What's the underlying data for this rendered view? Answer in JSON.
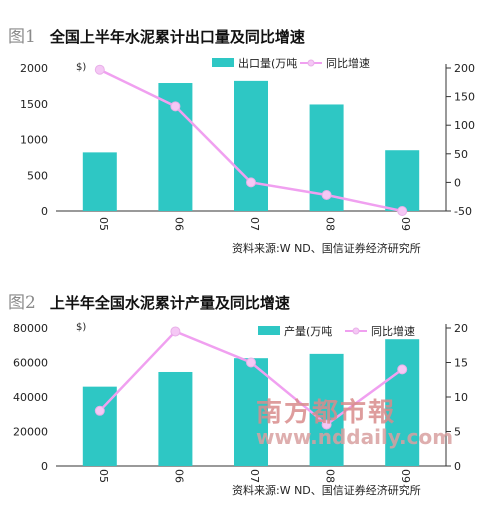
{
  "chart_data": [
    {
      "type": "bar",
      "fig_label": "图1",
      "title": "全国上半年水泥累计出口量及同比增速",
      "unit_left": "$)",
      "categories": [
        "05",
        "06",
        "07",
        "08",
        "09"
      ],
      "series": [
        {
          "name": "出口量(万吨",
          "kind": "bar",
          "axis": "left",
          "values": [
            820,
            1790,
            1820,
            1490,
            850
          ]
        },
        {
          "name": "同比增速",
          "kind": "line",
          "axis": "right",
          "values": [
            197,
            133,
            0,
            -22,
            -50
          ]
        }
      ],
      "ylim_left": [
        0,
        2000
      ],
      "yticks_left": [
        "2000",
        "1500",
        "1000",
        "500",
        "0"
      ],
      "yticks_left_values": [
        2000,
        1500,
        1000,
        500,
        0
      ],
      "ylim_right": [
        -50,
        200
      ],
      "yticks_right": [
        "200",
        "150",
        "100",
        "50",
        "0",
        "-50"
      ],
      "yticks_right_values": [
        200,
        150,
        100,
        50,
        0,
        -50
      ],
      "source": "资料来源:W ND、国信证券经济研究所",
      "colors": {
        "bar": "#2ec7c4",
        "line": "#f0a0f0",
        "marker": "#f5c8f5"
      }
    },
    {
      "type": "bar",
      "fig_label": "图2",
      "title": "上半年全国水泥累计产量及同比增速",
      "unit_left": "$)",
      "categories": [
        "05",
        "06",
        "07",
        "08",
        "09"
      ],
      "series": [
        {
          "name": "产量(万吨",
          "kind": "bar",
          "axis": "left",
          "values": [
            46000,
            54500,
            62500,
            65000,
            73500
          ]
        },
        {
          "name": "同比增速",
          "kind": "line",
          "axis": "right",
          "values": [
            8,
            19.5,
            15,
            6,
            14
          ]
        }
      ],
      "ylim_left": [
        0,
        80000
      ],
      "yticks_left": [
        "80000",
        "60000",
        "40000",
        "20000",
        "0"
      ],
      "yticks_left_values": [
        80000,
        60000,
        40000,
        20000,
        0
      ],
      "ylim_right": [
        0,
        20
      ],
      "yticks_right": [
        "20",
        "15",
        "10",
        "5",
        "0"
      ],
      "yticks_right_values": [
        20,
        15,
        10,
        5,
        0
      ],
      "source": "资料来源:W ND、国信证券经济研究所",
      "colors": {
        "bar": "#2ec7c4",
        "line": "#f0a0f0",
        "marker": "#f5c8f5"
      }
    }
  ],
  "watermark": {
    "name": "南方都市報",
    "url": "www.nddaily.com"
  }
}
